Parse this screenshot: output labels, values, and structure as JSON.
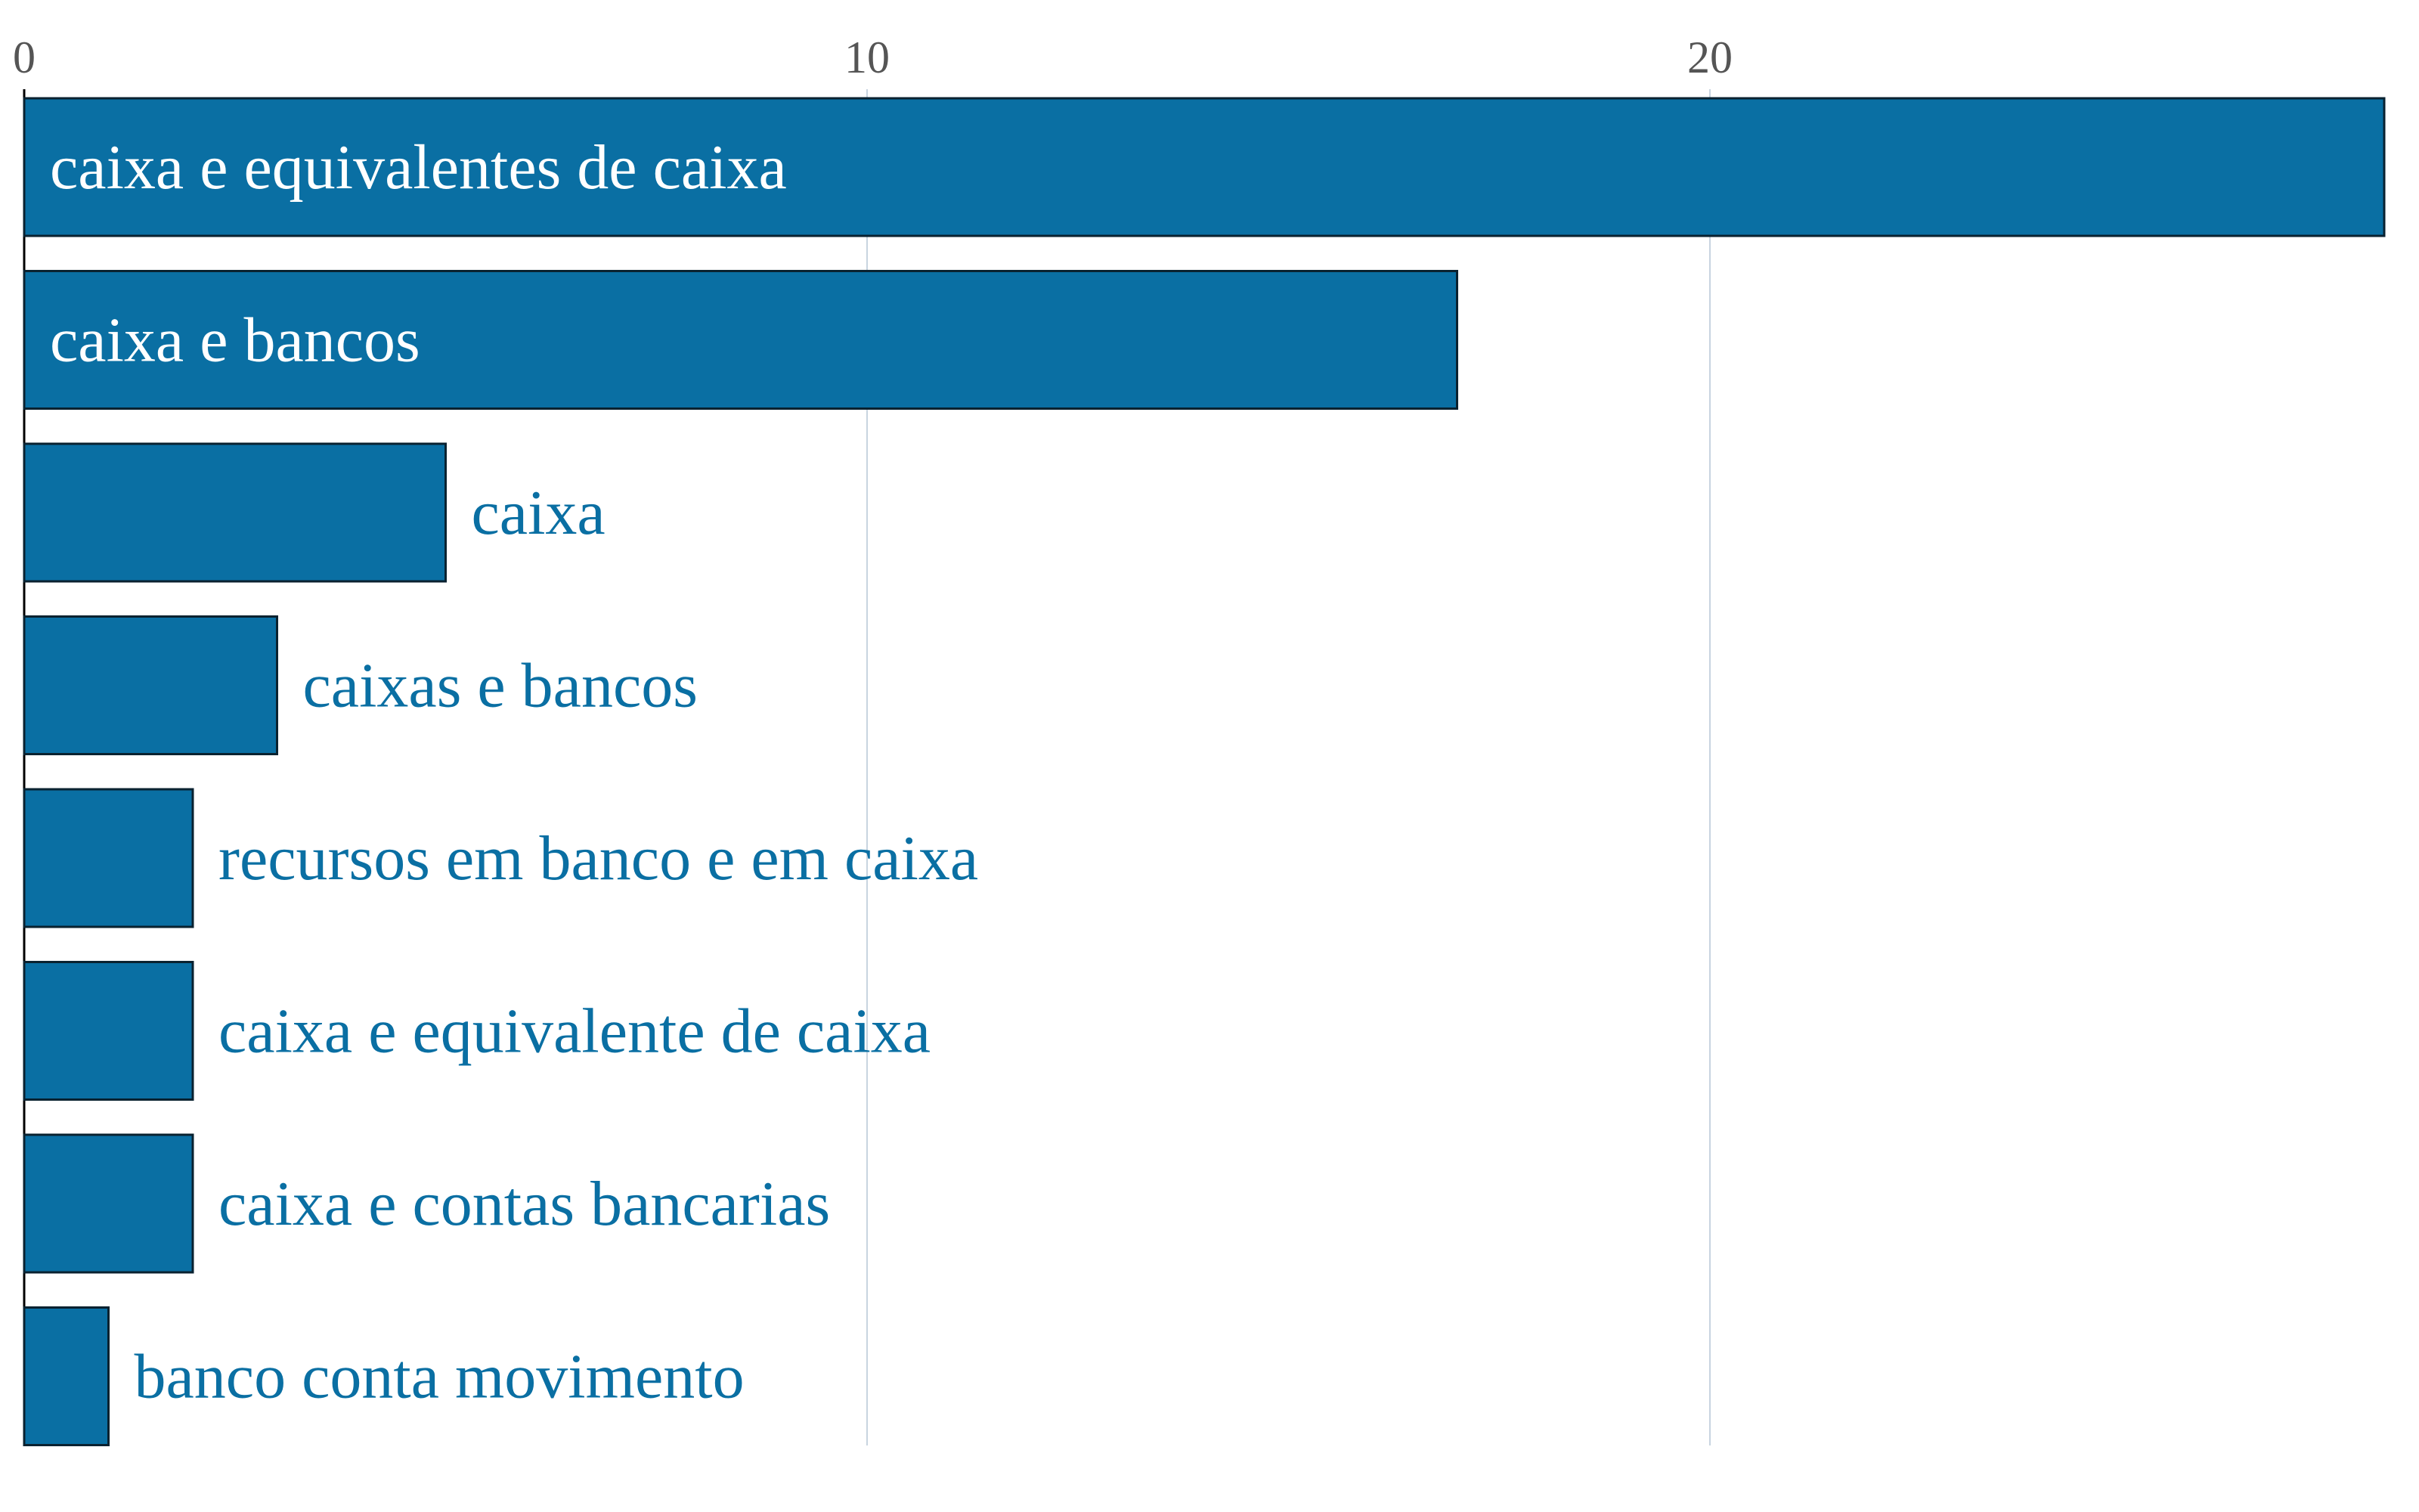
{
  "chart_data": {
    "type": "bar",
    "orientation": "horizontal",
    "categories": [
      "caixa e equivalentes de caixa",
      "caixa e bancos",
      "caixa",
      "caixas e bancos",
      "recursos em banco e em caixa",
      "caixa e equivalente de caixa",
      "caixa e contas bancarias",
      "banco conta movimento"
    ],
    "values": [
      28,
      17,
      5,
      3,
      2,
      2,
      2,
      1
    ],
    "x_ticks": [
      0,
      10,
      20
    ],
    "xlim": [
      0,
      28.6
    ],
    "grid": true,
    "legend": "none",
    "title": "",
    "xlabel": "",
    "ylabel": "",
    "colors": {
      "bar": "#0a6fa3",
      "bar_edge": "#0a2230",
      "label_inside": "#ffffff",
      "label_outside": "#0a6fa3",
      "grid": "#c8d4e0",
      "tick_text": "#555555"
    }
  }
}
